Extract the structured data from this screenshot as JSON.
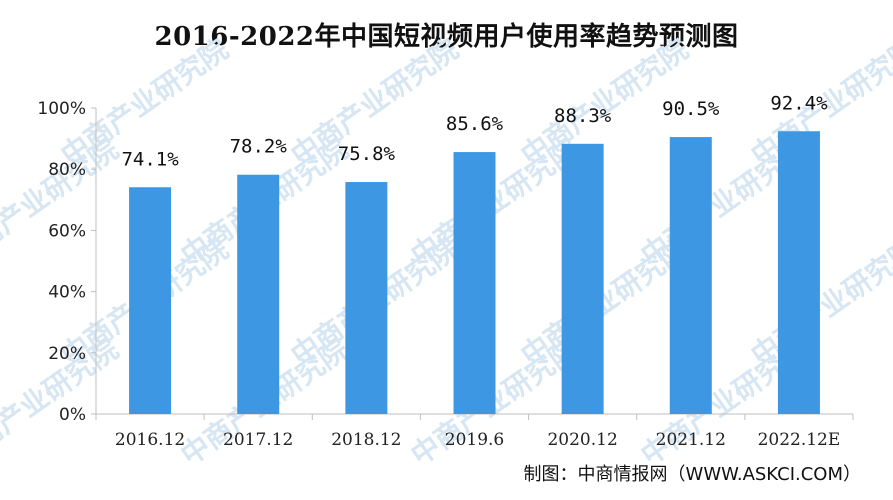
{
  "title": "2016-2022年中国短视频用户使用率趋势预测图",
  "source": "制图：中商情报网（WWW.ASKCI.COM）",
  "watermark": "中商产业研究院",
  "colors": {
    "bar": "#3d97e3",
    "axis": "#bfbfbf"
  },
  "chart_data": {
    "type": "bar",
    "title": "2016-2022年中国短视频用户使用率趋势预测图",
    "categories": [
      "2016.12",
      "2017.12",
      "2018.12",
      "2019.6",
      "2020.12",
      "2021.12",
      "2022.12E"
    ],
    "values": [
      74.1,
      78.2,
      75.8,
      85.6,
      88.3,
      90.5,
      92.4
    ],
    "data_labels": [
      "74.1%",
      "78.2%",
      "75.8%",
      "85.6%",
      "88.3%",
      "90.5%",
      "92.4%"
    ],
    "y_ticks": [
      "0%",
      "20%",
      "40%",
      "60%",
      "80%",
      "100%"
    ],
    "y_tick_values": [
      0,
      20,
      40,
      60,
      80,
      100
    ],
    "ylim": [
      0,
      100
    ],
    "xlabel": "",
    "ylabel": "",
    "grid": false,
    "legend": "none"
  }
}
